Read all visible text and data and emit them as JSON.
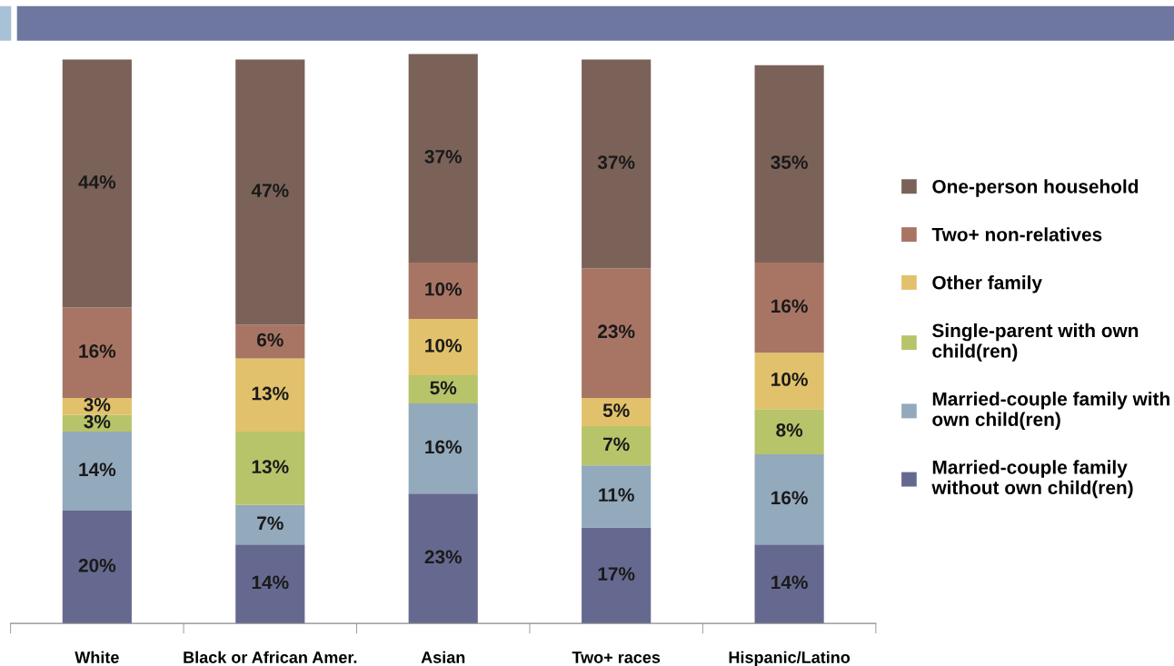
{
  "chart_data": {
    "type": "bar",
    "stacked": true,
    "legend": "right",
    "categories": [
      "White",
      "Black or African Amer.",
      "Asian",
      "Two+ races",
      "Hispanic/Latino"
    ],
    "series": [
      {
        "name": "Married-couple family\nwithout own child(ren)",
        "color": "#66698f",
        "values": [
          20,
          14,
          23,
          17,
          14
        ],
        "value_labels": [
          "20%",
          "14%",
          "23%",
          "17%",
          "14%"
        ]
      },
      {
        "name": "Married-couple family with\nown child(ren)",
        "color": "#93a9bc",
        "values": [
          14,
          7,
          16,
          11,
          16
        ],
        "value_labels": [
          "14%",
          "7%",
          "16%",
          "11%",
          "16%"
        ]
      },
      {
        "name": "Single-parent with own\nchild(ren)",
        "color": "#b8c46a",
        "values": [
          3,
          13,
          5,
          7,
          8
        ],
        "value_labels": [
          "3%",
          "13%",
          "5%",
          "7%",
          "8%"
        ]
      },
      {
        "name": "Other family",
        "color": "#e1c16b",
        "values": [
          3,
          13,
          10,
          5,
          10
        ],
        "value_labels": [
          "3%",
          "13%",
          "10%",
          "5%",
          "10%"
        ]
      },
      {
        "name": "Two+ non-relatives",
        "color": "#a87565",
        "values": [
          16,
          6,
          10,
          23,
          16
        ],
        "value_labels": [
          "16%",
          "6%",
          "10%",
          "23%",
          "16%"
        ]
      },
      {
        "name": "One-person household",
        "color": "#7b6259",
        "values": [
          44,
          47,
          37,
          37,
          35
        ],
        "value_labels": [
          "44%",
          "47%",
          "37%",
          "37%",
          "35%"
        ]
      }
    ]
  }
}
